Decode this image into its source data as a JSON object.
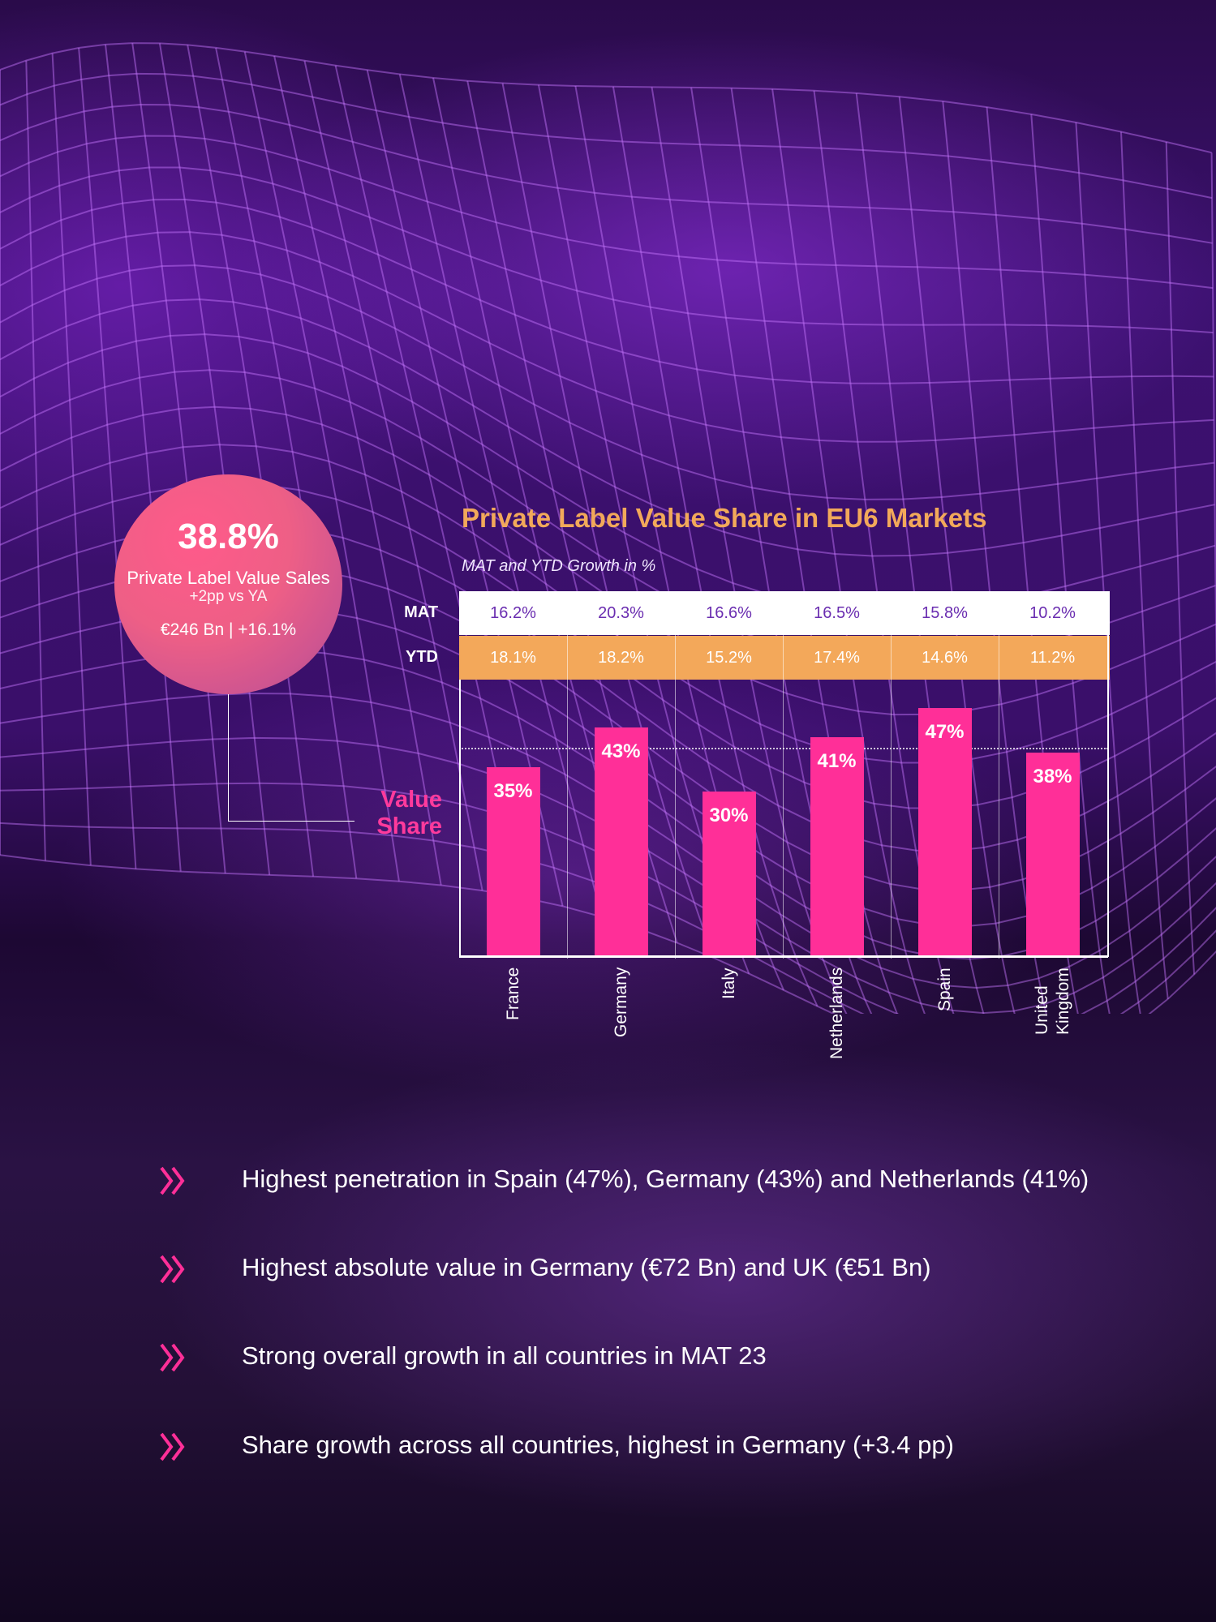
{
  "summary": {
    "share": "38.8%",
    "label": "Private Label Value Sales",
    "change": "+2pp vs YA",
    "value_and_growth": "€246 Bn  |  +16.1%"
  },
  "chart_data": {
    "type": "bar",
    "title": "Private Label Value Share in EU6 Markets",
    "subtitle": "MAT and YTD Growth in %",
    "ylabel": "Value Share",
    "categories": [
      "France",
      "Germany",
      "Italy",
      "Netherlands",
      "Spain",
      "United Kingdom"
    ],
    "values": [
      35,
      43,
      30,
      41,
      47,
      38
    ],
    "value_labels": [
      "35%",
      "43%",
      "30%",
      "41%",
      "47%",
      "38%"
    ],
    "reference_value": 38.8,
    "growth_table": {
      "rows": [
        {
          "label": "MAT",
          "values": [
            "16.2%",
            "20.3%",
            "16.6%",
            "16.5%",
            "15.8%",
            "10.2%"
          ]
        },
        {
          "label": "YTD",
          "values": [
            "18.1%",
            "18.2%",
            "15.2%",
            "17.4%",
            "14.6%",
            "11.2%"
          ]
        }
      ]
    },
    "colors": {
      "bars": "#ff2f98",
      "title": "#f2a95a",
      "ytd_band": "#f3a85a",
      "mat_band": "#ffffff"
    }
  },
  "bullets": [
    "Highest penetration in Spain (47%), Germany (43%) and Netherlands (41%)",
    "Highest absolute value in Germany (€72 Bn) and UK (€51 Bn)",
    "Strong overall growth in all countries in MAT 23",
    "Share growth across all countries, highest in Germany (+3.4 pp)"
  ],
  "bullet_icon": "double-chevron-right-icon",
  "accent_color": "#ff2f98"
}
